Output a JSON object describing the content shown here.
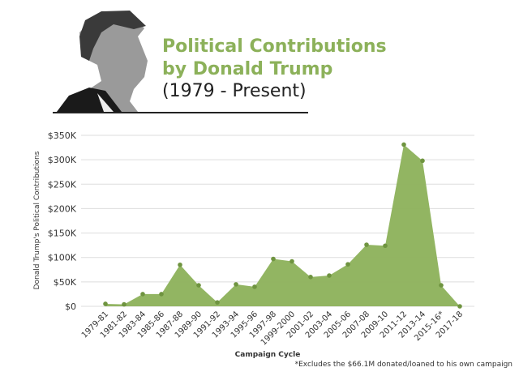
{
  "chart_data": {
    "type": "area",
    "title": "Political Contributions by Donald Trump",
    "subtitle": "(1979 - Present)",
    "y_label": "Donald Trump's Political Contributions",
    "x_label": "Campaign Cycle",
    "annotation": "*Excludes the $66.1M donated/loaned to his own campaign",
    "categories": [
      "1979-81",
      "1981-82",
      "1983-84",
      "1985-86",
      "1987-88",
      "1989-90",
      "1991-92",
      "1993-94",
      "1995-96",
      "1997-98",
      "1999-2000",
      "2001-02",
      "2003-04",
      "2005-06",
      "2007-08",
      "2009-10",
      "2011-12",
      "2013-14",
      "2015-16*",
      "2017-18"
    ],
    "values": [
      5000,
      4000,
      25000,
      25000,
      85000,
      43000,
      8000,
      45000,
      40000,
      97000,
      92000,
      60000,
      63000,
      86000,
      126000,
      124000,
      331000,
      298000,
      43000,
      0
    ],
    "color": "#8cb15a",
    "ylim": [
      0,
      350000
    ],
    "yticks": [
      {
        "value": 0,
        "label": "$0"
      },
      {
        "value": 50000,
        "label": "$50K"
      },
      {
        "value": 100000,
        "label": "$100K"
      },
      {
        "value": 150000,
        "label": "$150K"
      },
      {
        "value": 200000,
        "label": "$200K"
      },
      {
        "value": 250000,
        "label": "$250K"
      },
      {
        "value": 300000,
        "label": "$300K"
      },
      {
        "value": 350000,
        "label": "$350K"
      }
    ],
    "grid": true
  }
}
